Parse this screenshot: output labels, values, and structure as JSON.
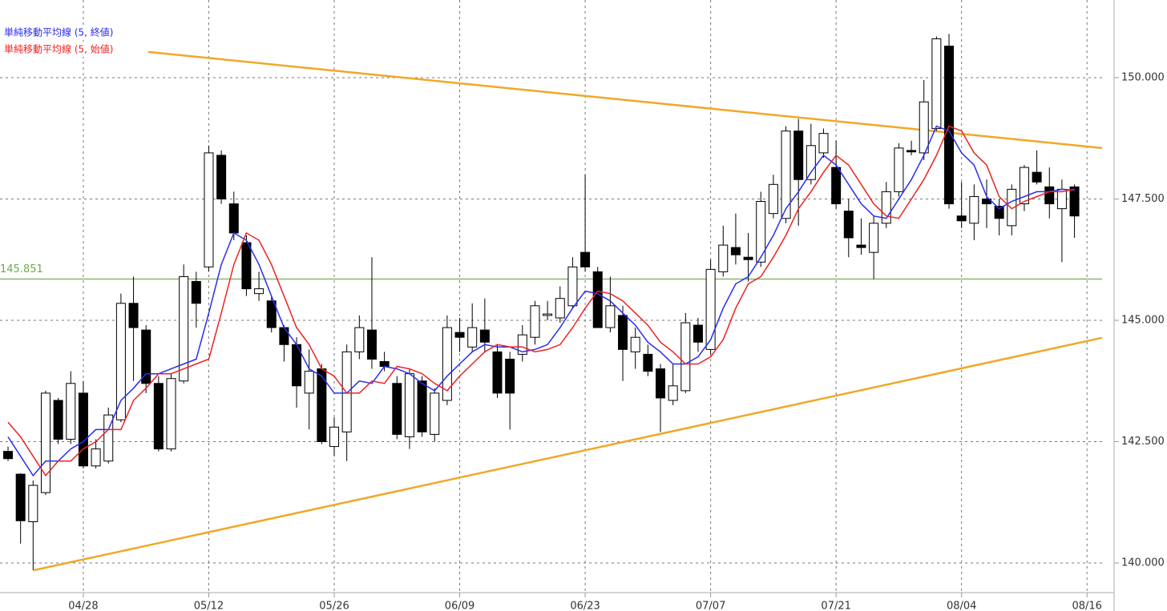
{
  "chart_data": {
    "type": "candlestick",
    "up_color": "#ffffff",
    "down_color": "#000000",
    "outline_color": "#000000",
    "xlim": [
      -0.64,
      87.2
    ],
    "xticks": [
      {
        "value": 6,
        "label": "04/28"
      },
      {
        "value": 16,
        "label": "05/12"
      },
      {
        "value": 26,
        "label": "05/26"
      },
      {
        "value": 36,
        "label": "06/09"
      },
      {
        "value": 46,
        "label": "06/23"
      },
      {
        "value": 56,
        "label": "07/07"
      },
      {
        "value": 66,
        "label": "07/21"
      },
      {
        "value": 76,
        "label": "08/04"
      },
      {
        "value": 86,
        "label": "08/16"
      }
    ],
    "ylim": [
      139.39,
      151.6
    ],
    "yticks": [
      {
        "value": 140,
        "label": "140.000"
      },
      {
        "value": 142.5,
        "label": "142.500"
      },
      {
        "value": 145,
        "label": "145.000"
      },
      {
        "value": 147.5,
        "label": "147.500"
      },
      {
        "value": 150,
        "label": "150.000"
      }
    ],
    "grid": true,
    "open": [
      142.3,
      141.83,
      140.85,
      141.45,
      143.35,
      142.55,
      143.5,
      142.0,
      142.1,
      142.95,
      145.35,
      144.8,
      143.7,
      142.35,
      143.75,
      145.8,
      146.1,
      148.4,
      147.4,
      146.6,
      145.55,
      145.4,
      144.85,
      144.5,
      143.5,
      144.0,
      142.4,
      142.7,
      144.35,
      144.8,
      144.15,
      143.7,
      142.6,
      143.75,
      142.65,
      143.35,
      144.75,
      144.45,
      144.8,
      144.35,
      144.2,
      144.3,
      144.65,
      145.1,
      145.05,
      145.3,
      146.4,
      146.0,
      144.85,
      145.1,
      144.35,
      144.3,
      144.0,
      143.35,
      143.55,
      144.9,
      144.4,
      146.0,
      146.5,
      146.3,
      146.2,
      147.2,
      147.1,
      148.9,
      147.9,
      148.45,
      148.15,
      147.25,
      146.55,
      146.4,
      147.0,
      147.65,
      148.5,
      148.45,
      148.95,
      150.65,
      147.15,
      147.0,
      147.5,
      147.35,
      146.95,
      147.4,
      148.05,
      147.75,
      147.3,
      147.75
    ],
    "high": [
      142.4,
      141.85,
      141.7,
      143.55,
      143.4,
      143.95,
      143.75,
      142.55,
      143.2,
      145.55,
      145.9,
      144.9,
      143.85,
      143.9,
      146.15,
      146.0,
      148.6,
      148.5,
      147.65,
      146.75,
      146.0,
      145.5,
      144.9,
      144.65,
      144.4,
      144.1,
      143.0,
      144.5,
      145.1,
      146.3,
      144.35,
      143.85,
      144.0,
      143.85,
      143.6,
      145.1,
      145.05,
      145.35,
      145.45,
      144.5,
      144.35,
      144.9,
      145.4,
      145.4,
      145.7,
      146.3,
      148.0,
      146.1,
      145.9,
      145.3,
      144.85,
      144.5,
      144.1,
      144.1,
      145.15,
      145.05,
      146.25,
      146.95,
      147.2,
      146.8,
      147.65,
      148.0,
      149.0,
      149.15,
      149.05,
      148.95,
      148.7,
      147.5,
      147.1,
      147.15,
      147.85,
      148.65,
      148.7,
      149.95,
      150.85,
      150.9,
      147.85,
      147.8,
      147.9,
      147.5,
      147.8,
      148.2,
      148.5,
      148.15,
      147.9,
      147.8
    ],
    "low": [
      142.1,
      140.4,
      139.85,
      141.4,
      142.45,
      142.45,
      141.95,
      141.95,
      142.05,
      142.9,
      143.75,
      143.5,
      142.3,
      142.3,
      143.7,
      144.85,
      146.0,
      147.4,
      146.65,
      145.5,
      145.4,
      144.75,
      144.15,
      143.2,
      142.75,
      142.45,
      142.2,
      142.1,
      144.2,
      144.0,
      143.95,
      142.55,
      142.35,
      142.6,
      142.5,
      143.25,
      144.35,
      144.35,
      144.35,
      143.4,
      142.75,
      144.15,
      144.5,
      145.0,
      144.95,
      145.25,
      146.0,
      144.85,
      144.75,
      143.75,
      144.0,
      143.85,
      142.7,
      143.25,
      143.5,
      144.35,
      144.3,
      145.9,
      146.15,
      145.8,
      146.1,
      147.1,
      147.0,
      146.95,
      147.8,
      148.35,
      147.3,
      146.3,
      146.35,
      145.85,
      146.9,
      147.55,
      148.4,
      148.3,
      148.9,
      147.3,
      146.9,
      146.65,
      146.9,
      146.75,
      146.75,
      147.25,
      147.8,
      147.1,
      146.2,
      146.7
    ],
    "close": [
      142.15,
      140.87,
      141.6,
      143.5,
      142.55,
      143.7,
      142.0,
      142.35,
      143.05,
      145.35,
      144.85,
      143.7,
      142.35,
      143.8,
      145.9,
      145.35,
      148.45,
      147.5,
      146.8,
      145.65,
      145.65,
      144.85,
      144.5,
      143.65,
      143.95,
      142.5,
      142.8,
      144.35,
      144.85,
      144.2,
      144.05,
      142.65,
      143.9,
      142.7,
      143.5,
      144.85,
      144.65,
      144.85,
      144.55,
      143.5,
      143.5,
      144.7,
      145.3,
      145.13,
      145.45,
      146.1,
      146.1,
      144.85,
      145.3,
      144.4,
      144.65,
      143.95,
      143.4,
      143.65,
      144.95,
      144.55,
      146.05,
      146.55,
      146.35,
      146.25,
      147.45,
      147.8,
      148.9,
      147.9,
      148.6,
      148.85,
      147.4,
      146.7,
      146.5,
      147.0,
      147.65,
      148.55,
      148.47,
      149.5,
      150.8,
      147.4,
      147.05,
      147.55,
      147.4,
      147.1,
      147.7,
      148.15,
      147.85,
      147.4,
      147.7,
      147.15
    ],
    "series": [
      {
        "name": "単純移動平均線 (5, 終値)",
        "color": "#2b2bf0",
        "values": [
          142.6,
          142.2,
          141.8,
          142.1,
          142.1,
          142.35,
          142.5,
          142.75,
          142.75,
          143.35,
          143.6,
          143.9,
          143.9,
          144.0,
          144.1,
          144.2,
          145.15,
          146.15,
          146.8,
          146.65,
          146.15,
          145.5,
          144.85,
          144.5,
          144.0,
          143.85,
          143.5,
          143.5,
          143.75,
          143.7,
          144.05,
          144.0,
          143.9,
          143.7,
          143.55,
          143.85,
          144.1,
          144.35,
          144.5,
          144.45,
          144.45,
          144.35,
          144.4,
          144.5,
          144.85,
          145.25,
          145.6,
          145.55,
          145.4,
          145.15,
          144.9,
          144.55,
          144.35,
          144.1,
          144.1,
          144.25,
          144.6,
          145.25,
          145.75,
          145.9,
          146.3,
          146.75,
          147.3,
          147.65,
          148.05,
          148.4,
          148.2,
          147.8,
          147.4,
          147.15,
          147.1,
          147.5,
          147.9,
          148.4,
          149.0,
          148.9,
          148.45,
          148.2,
          147.55,
          147.3,
          147.45,
          147.55,
          147.65,
          147.65,
          147.7,
          147.68
        ]
      },
      {
        "name": "単純移動平均線 (5, 始値)",
        "color": "#ee2222",
        "values": [
          142.9,
          142.6,
          142.2,
          141.8,
          142.1,
          142.1,
          142.35,
          142.5,
          142.75,
          142.75,
          143.35,
          143.6,
          143.9,
          143.9,
          144.0,
          144.1,
          144.2,
          145.15,
          146.15,
          146.8,
          146.65,
          146.15,
          145.5,
          144.85,
          144.5,
          144.0,
          143.85,
          143.5,
          143.5,
          143.75,
          143.7,
          144.05,
          144.0,
          143.9,
          143.7,
          143.55,
          143.85,
          144.1,
          144.35,
          144.5,
          144.45,
          144.45,
          144.35,
          144.4,
          144.5,
          144.85,
          145.25,
          145.6,
          145.55,
          145.4,
          145.15,
          144.9,
          144.55,
          144.35,
          144.1,
          144.1,
          144.25,
          144.6,
          145.25,
          145.75,
          145.9,
          146.3,
          146.75,
          147.3,
          147.65,
          148.05,
          148.4,
          148.2,
          147.8,
          147.4,
          147.15,
          147.1,
          147.5,
          147.9,
          148.4,
          149.0,
          148.9,
          148.45,
          148.2,
          147.55,
          147.3,
          147.45,
          147.55,
          147.65,
          147.65,
          147.7
        ]
      }
    ],
    "level": {
      "value": 145.851,
      "color": "#6aaa4a"
    },
    "trendlines": [
      {
        "color": "#f0a826",
        "points": [
          [
            11.18,
            150.53
          ],
          [
            87.2,
            148.55
          ]
        ]
      },
      {
        "color": "#f0a826",
        "points": [
          [
            2.04,
            139.85
          ],
          [
            87.2,
            144.64
          ]
        ]
      }
    ]
  }
}
